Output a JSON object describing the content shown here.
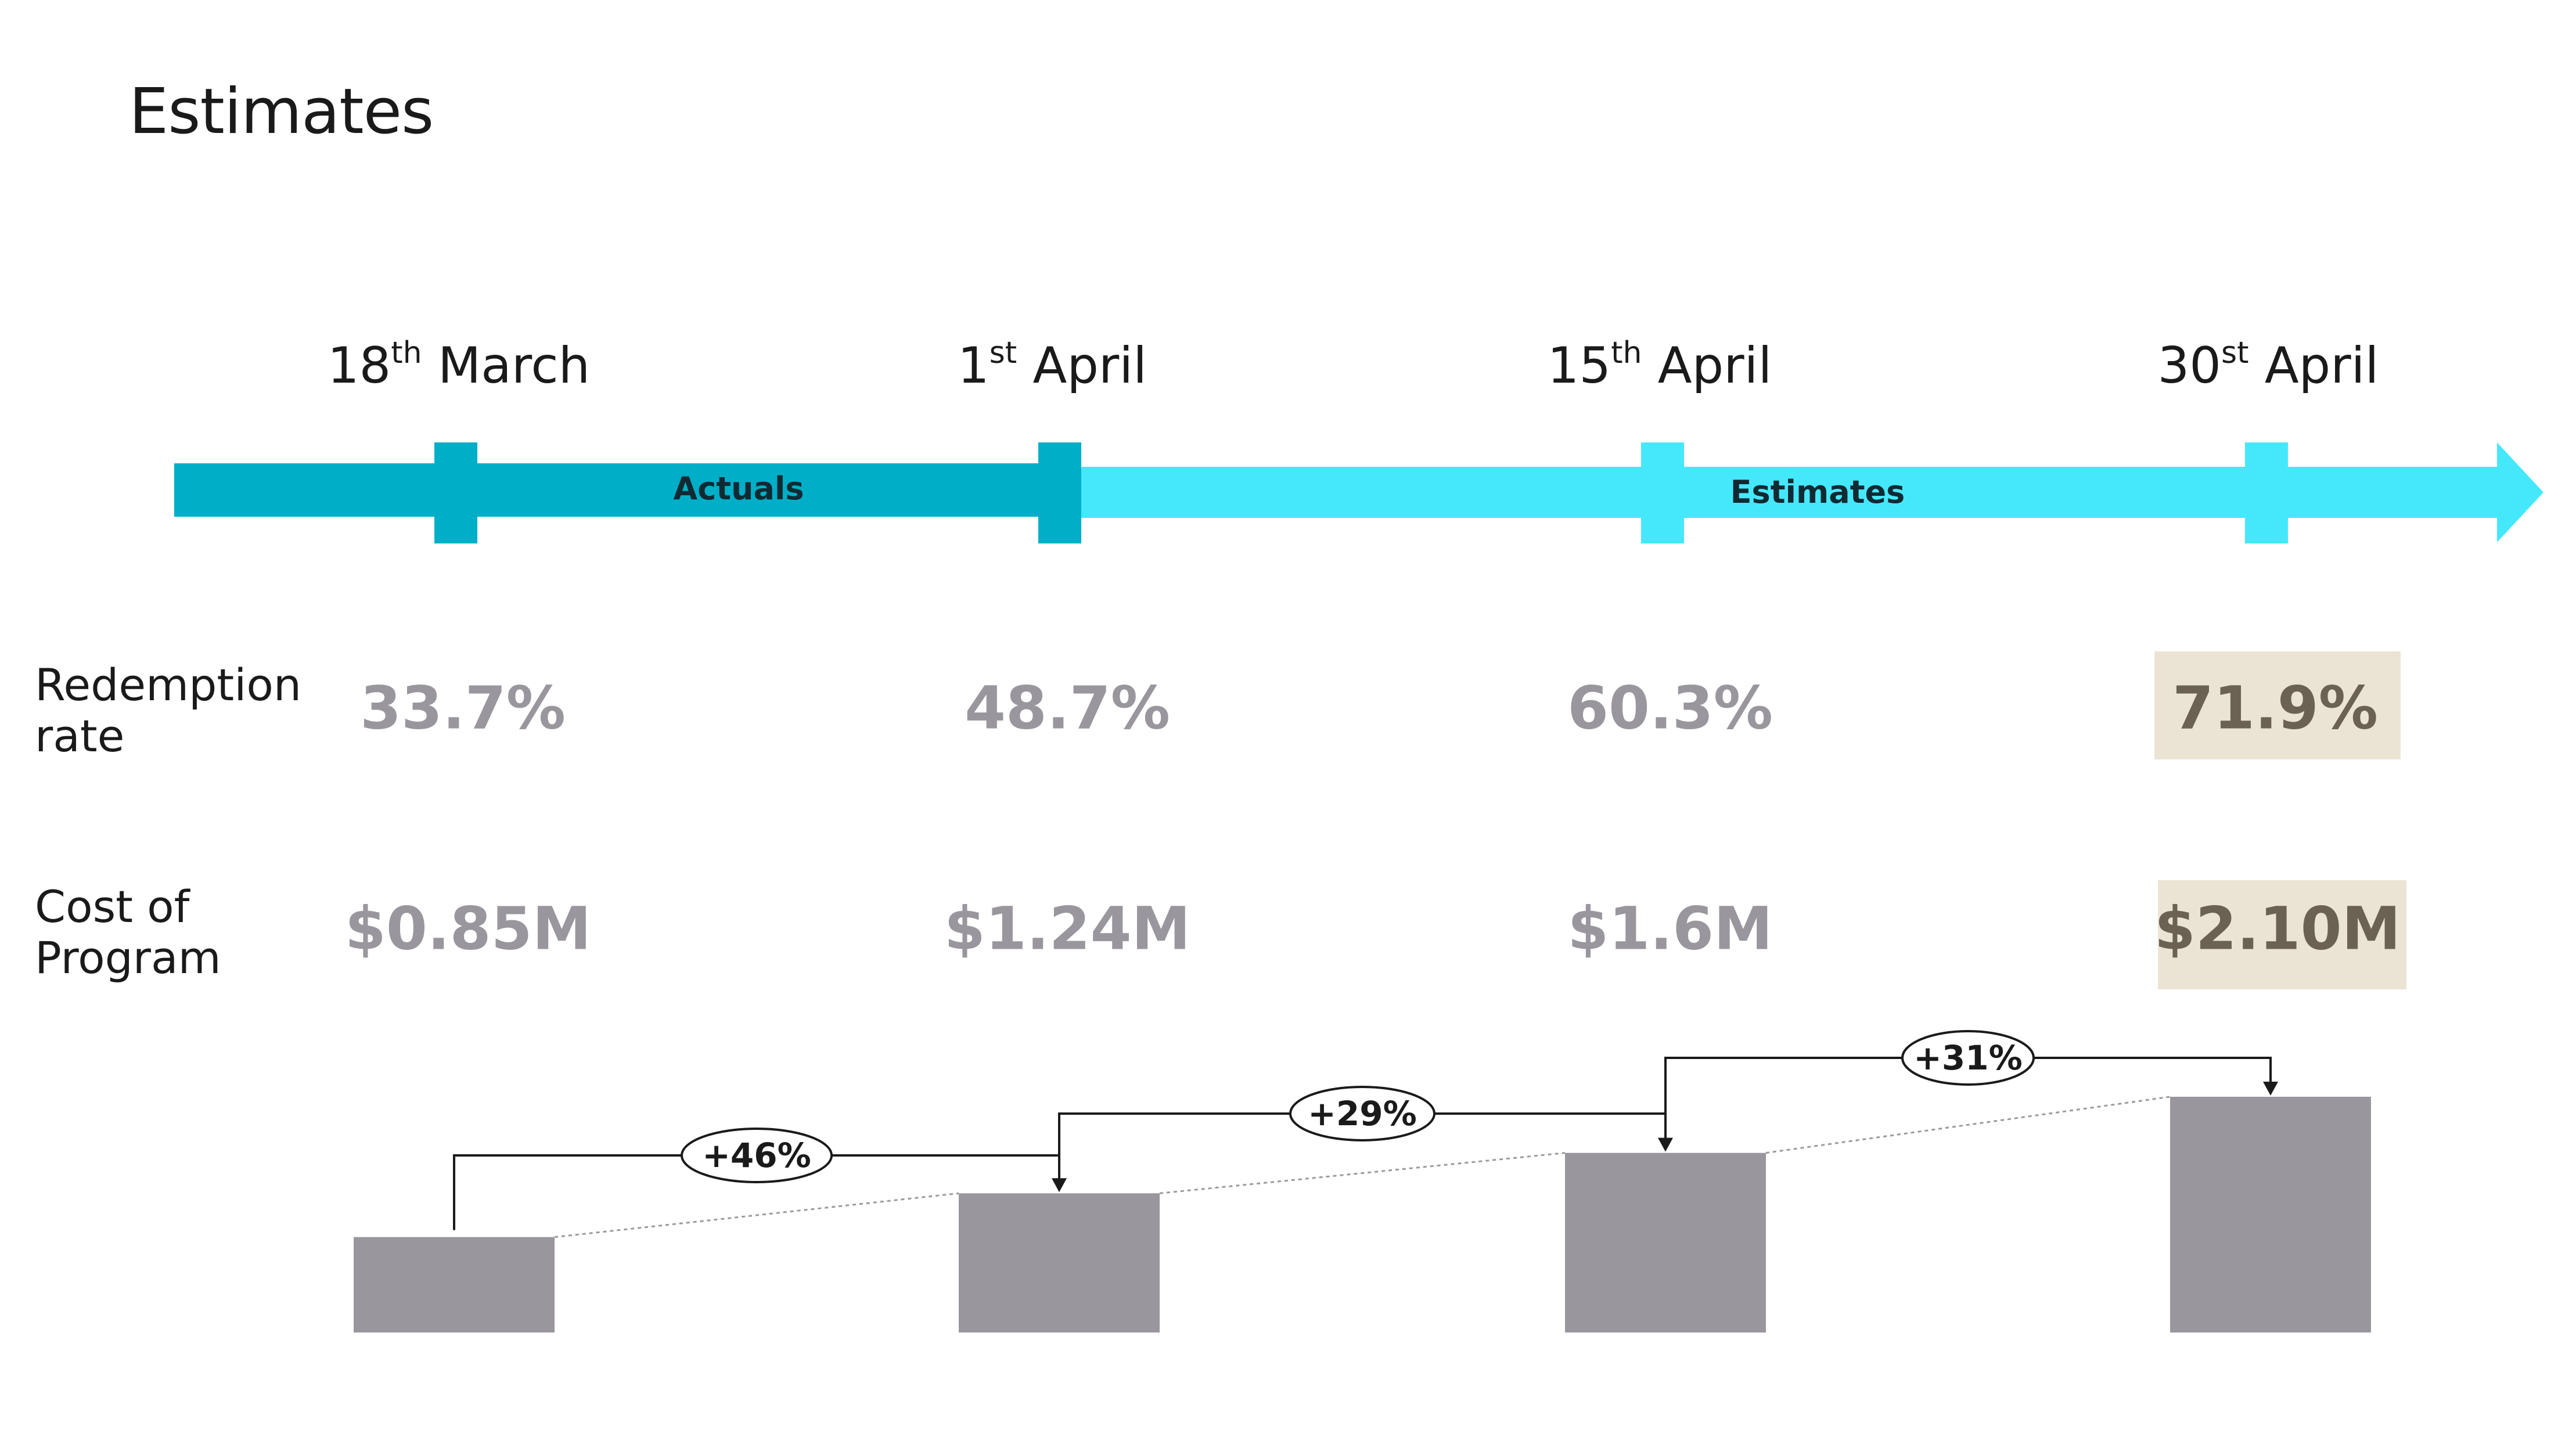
{
  "page": {
    "title": "Estimates"
  },
  "timeline": {
    "actuals_label": "Actuals",
    "estimates_label": "Estimates",
    "dates": [
      {
        "num": "18",
        "sup": "th",
        "month": "March"
      },
      {
        "num": "1",
        "sup": "st",
        "month": "April"
      },
      {
        "num": "15",
        "sup": "th",
        "month": "April"
      },
      {
        "num": "30",
        "sup": "st",
        "month": "April"
      }
    ]
  },
  "metrics": {
    "redemption": {
      "label_line1": "Redemption",
      "label_line2": "rate",
      "values": [
        "33.7%",
        "48.7%",
        "60.3%",
        "71.9%"
      ]
    },
    "cost": {
      "label_line1": "Cost of",
      "label_line2": "Program",
      "values": [
        "$0.85M",
        "$1.24M",
        "$1.6M",
        "$2.10M"
      ]
    }
  },
  "colors": {
    "actuals": "#00aec7",
    "estimates": "#45e8fb",
    "bar": "#9a969d",
    "highlight": "#ebe4d4"
  },
  "chart_data": {
    "type": "bar",
    "categories": [
      "18th March",
      "1st April",
      "15th April",
      "30st April"
    ],
    "values": [
      0.85,
      1.24,
      1.6,
      2.1
    ],
    "ylim": [
      0,
      2.1
    ],
    "changes": [
      "+46%",
      "+29%",
      "+31%"
    ]
  }
}
